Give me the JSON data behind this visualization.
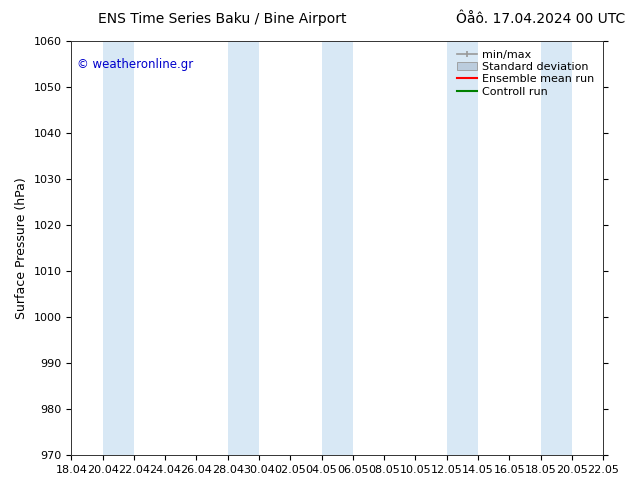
{
  "title_left": "ENS Time Series Baku / Bine Airport",
  "title_right": "Ôåô. 17.04.2024 00 UTC",
  "ylabel": "Surface Pressure (hPa)",
  "ylim": [
    970,
    1060
  ],
  "yticks": [
    970,
    980,
    990,
    1000,
    1010,
    1020,
    1030,
    1040,
    1050,
    1060
  ],
  "watermark": "© weatheronline.gr",
  "watermark_color": "#0000cc",
  "bg_color": "#ffffff",
  "plot_bg_color": "#ffffff",
  "shaded_color": "#d8e8f5",
  "shaded_alpha": 1.0,
  "legend_items": [
    "min/max",
    "Standard deviation",
    "Ensemble mean run",
    "Controll run"
  ],
  "legend_colors_line": [
    "#999999",
    "#bbccdd",
    "#ff0000",
    "#008000"
  ],
  "x_tick_labels": [
    "18.04",
    "20.04",
    "22.04",
    "24.04",
    "26.04",
    "28.04",
    "30.04",
    "02.05",
    "04.05",
    "06.05",
    "08.05",
    "10.05",
    "12.05",
    "14.05",
    "16.05",
    "18.05",
    "20.05",
    "22.05"
  ],
  "shaded_bands_labels": [
    "20.04",
    "22.04",
    "28.04",
    "30.04",
    "04.05",
    "06.05",
    "12.05",
    "14.05",
    "18.05",
    "20.05"
  ],
  "title_fontsize": 10,
  "tick_fontsize": 8,
  "legend_fontsize": 8,
  "ylabel_fontsize": 9
}
